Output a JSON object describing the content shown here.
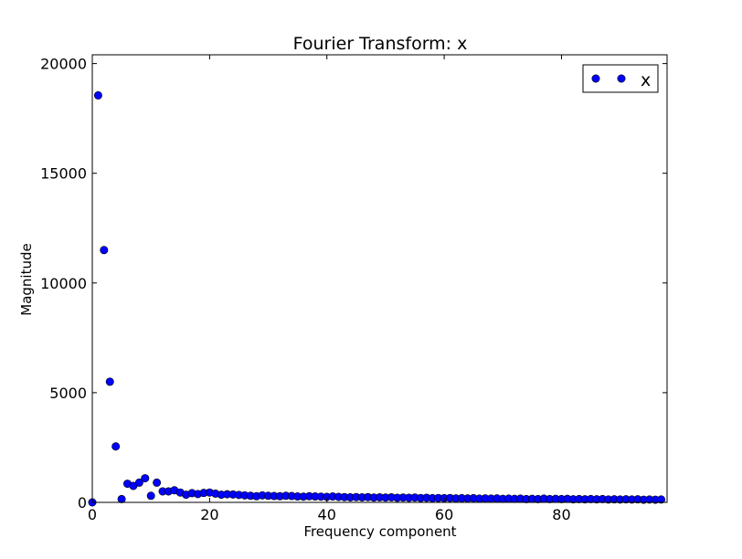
{
  "chart_data": {
    "type": "scatter",
    "title": "Fourier Transform: x",
    "xlabel": "Frequency component",
    "ylabel": "Magnitude",
    "xlim": [
      0,
      98
    ],
    "ylim": [
      0,
      20400
    ],
    "xticks": [
      0,
      20,
      40,
      60,
      80
    ],
    "xtick_labels": [
      "0",
      "20",
      "40",
      "60",
      "80"
    ],
    "yticks": [
      0,
      5000,
      10000,
      15000,
      20000
    ],
    "ytick_labels": [
      "0",
      "5000",
      "10000",
      "15000",
      "20000"
    ],
    "grid": false,
    "legend_position": "top-right",
    "series": [
      {
        "name": "x",
        "color": "#0000ff",
        "x": [
          0,
          1,
          2,
          3,
          4,
          5,
          6,
          7,
          8,
          9,
          10,
          11,
          12,
          13,
          14,
          15,
          16,
          17,
          18,
          19,
          20,
          21,
          22,
          23,
          24,
          25,
          26,
          27,
          28,
          29,
          30,
          31,
          32,
          33,
          34,
          35,
          36,
          37,
          38,
          39,
          40,
          41,
          42,
          43,
          44,
          45,
          46,
          47,
          48,
          49,
          50,
          51,
          52,
          53,
          54,
          55,
          56,
          57,
          58,
          59,
          60,
          61,
          62,
          63,
          64,
          65,
          66,
          67,
          68,
          69,
          70,
          71,
          72,
          73,
          74,
          75,
          76,
          77,
          78,
          79,
          80,
          81,
          82,
          83,
          84,
          85,
          86,
          87,
          88,
          89,
          90,
          91,
          92,
          93,
          94,
          95,
          96,
          97
        ],
        "y": [
          0,
          18550,
          11500,
          5500,
          2550,
          150,
          850,
          750,
          900,
          1100,
          300,
          900,
          500,
          500,
          550,
          450,
          350,
          420,
          380,
          430,
          450,
          400,
          350,
          370,
          360,
          340,
          320,
          300,
          280,
          320,
          300,
          290,
          280,
          300,
          290,
          270,
          260,
          280,
          270,
          260,
          250,
          270,
          250,
          240,
          230,
          240,
          230,
          240,
          220,
          230,
          220,
          230,
          210,
          220,
          210,
          220,
          200,
          210,
          190,
          200,
          190,
          200,
          180,
          190,
          180,
          190,
          170,
          180,
          170,
          180,
          160,
          170,
          160,
          170,
          150,
          160,
          150,
          170,
          150,
          160,
          150,
          160,
          140,
          150,
          140,
          150,
          140,
          150,
          130,
          140,
          130,
          140,
          130,
          140,
          120,
          130,
          120,
          130
        ]
      }
    ]
  }
}
